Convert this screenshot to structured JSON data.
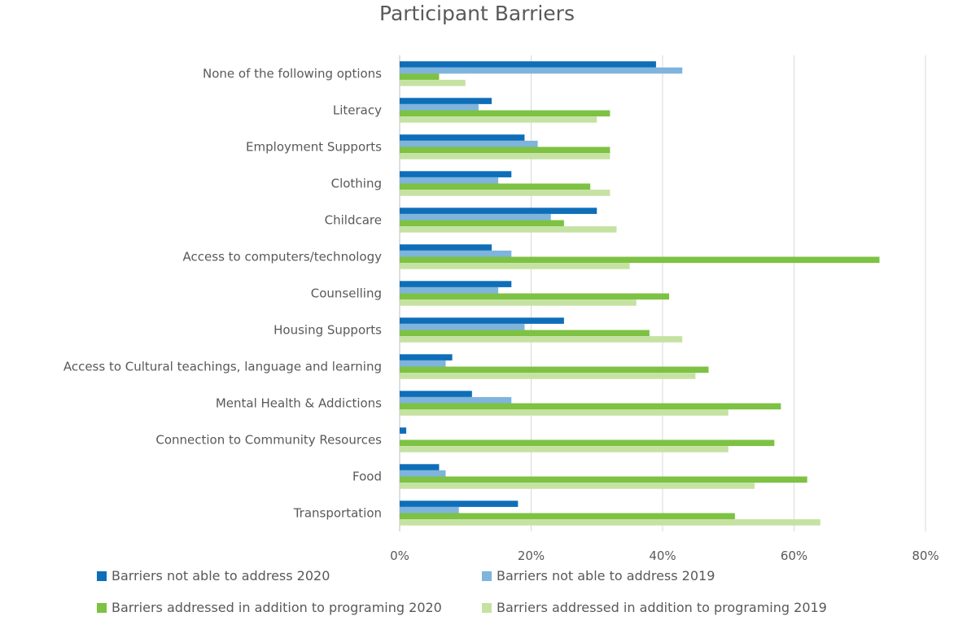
{
  "chart_data": {
    "type": "bar",
    "orientation": "horizontal",
    "title": "Participant Barriers",
    "xlabel": "",
    "ylabel": "",
    "xlim": [
      0,
      80
    ],
    "x_ticks": [
      "0%",
      "20%",
      "40%",
      "60%",
      "80%"
    ],
    "grid": true,
    "legend_position": "bottom",
    "categories": [
      "None of the following options",
      "Literacy",
      "Employment Supports",
      "Clothing",
      "Childcare",
      "Access to computers/technology",
      "Counselling",
      "Housing Supports",
      "Access to Cultural teachings, language and learning",
      "Mental Health & Addictions",
      "Connection to Community Resources",
      "Food",
      "Transportation"
    ],
    "series": [
      {
        "name": "Barriers not able to address 2020",
        "color": "#0E6EB8",
        "values": [
          39,
          14,
          19,
          17,
          30,
          14,
          17,
          25,
          8,
          11,
          1,
          6,
          18
        ]
      },
      {
        "name": "Barriers not able to address 2019",
        "color": "#7FB4DC",
        "values": [
          43,
          12,
          21,
          15,
          23,
          17,
          15,
          19,
          7,
          17,
          0,
          7,
          9
        ]
      },
      {
        "name": "Barriers addressed in addition to programing 2020",
        "color": "#7DC243",
        "values": [
          6,
          32,
          32,
          29,
          25,
          73,
          41,
          38,
          47,
          58,
          57,
          62,
          51
        ]
      },
      {
        "name": "Barriers addressed in addition to programing 2019",
        "color": "#C5E2A2",
        "values": [
          10,
          30,
          32,
          32,
          33,
          35,
          36,
          43,
          45,
          50,
          50,
          54,
          64
        ]
      }
    ]
  }
}
